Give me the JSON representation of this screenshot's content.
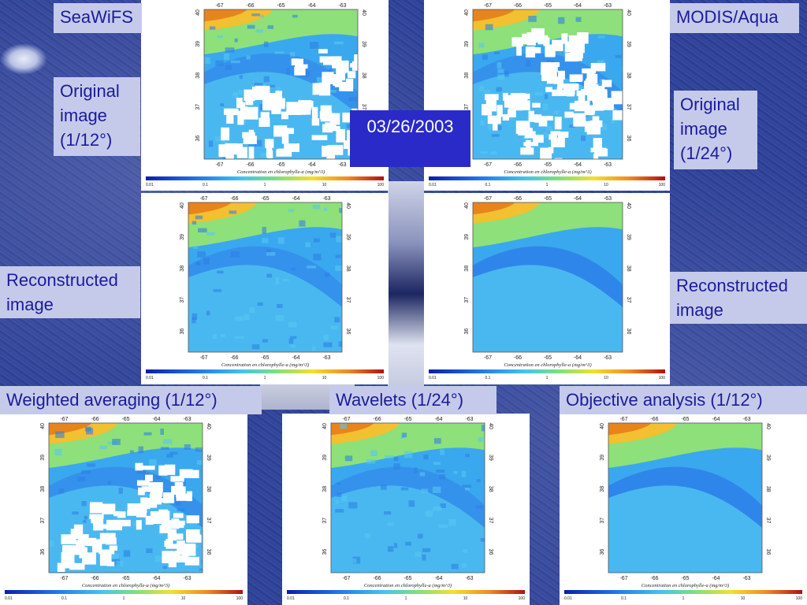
{
  "slide": {
    "date": "03/26/2003",
    "labels": {
      "seawifs": "SeaWiFS",
      "modis": "MODIS/Aqua",
      "original_left": [
        "Original",
        "image",
        "(1/12°)"
      ],
      "original_right": [
        "Original",
        "image",
        "(1/24°)"
      ],
      "reconstructed_left": [
        "Reconstructed",
        "image"
      ],
      "reconstructed_right": [
        "Reconstructed",
        "image"
      ],
      "weighted": "Weighted averaging (1/12°)",
      "wavelets": "Wavelets (1/24°)",
      "objective": "Objective analysis (1/12°)"
    }
  },
  "map": {
    "lon_ticks": [
      "-67",
      "-66",
      "-65",
      "-64",
      "-63"
    ],
    "lat_ticks": [
      "40",
      "39",
      "38",
      "37",
      "36"
    ],
    "colorbar_label": "Concentration en chlorophylle-a (mg/m^3)",
    "colorbar_ticks": [
      "0.01",
      "0.1",
      "1",
      "10",
      "100"
    ],
    "colors": {
      "gulf_stream": "#2a78e6",
      "shelf_high": "#f2a020",
      "mid": "#4ed0e6",
      "cloud": "#ffffff"
    }
  }
}
